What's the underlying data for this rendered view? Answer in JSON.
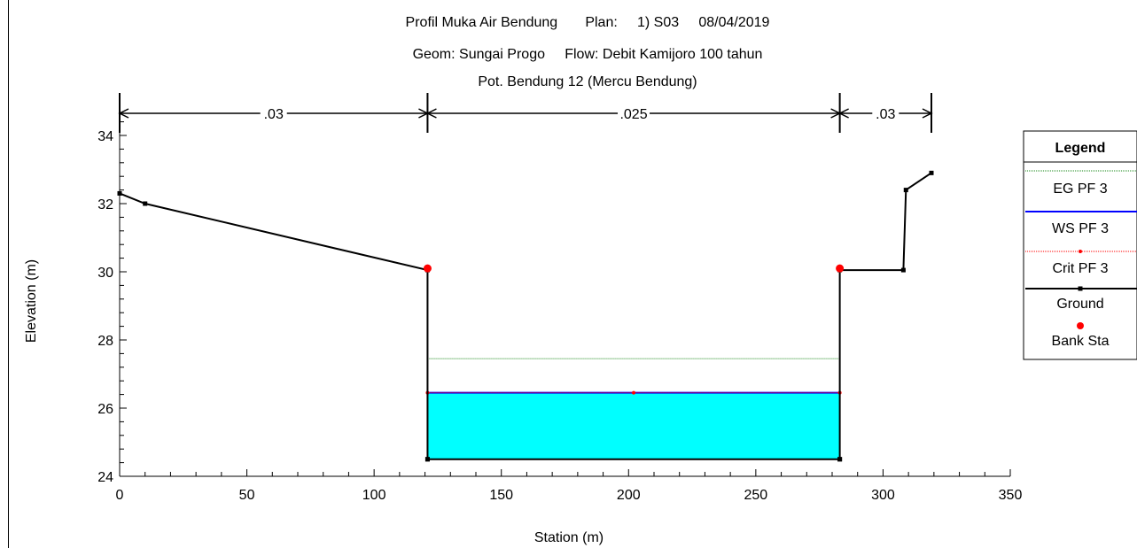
{
  "chart_data": {
    "type": "line",
    "title_lines": [
      "Profil Muka Air Bendung       Plan:     1) S03     08/04/2019",
      "Geom: Sungai Progo     Flow: Debit Kamijoro 100 tahun",
      "Pot. Bendung 12 (Mercu Bendung)"
    ],
    "xlabel": "Station (m)",
    "ylabel": "Elevation (m)",
    "xlim": [
      0,
      350
    ],
    "ylim": [
      24,
      35
    ],
    "x_ticks": [
      0,
      50,
      100,
      150,
      200,
      250,
      300,
      350
    ],
    "y_ticks": [
      24,
      26,
      28,
      30,
      32,
      34
    ],
    "x_minor_step": 10,
    "y_minor_step": 0.4,
    "grid": false,
    "legend_position": "right",
    "legend_title": "Legend",
    "manning_n": [
      {
        "label": ".03",
        "from": 0,
        "to": 121
      },
      {
        "label": ".025",
        "from": 121,
        "to": 283
      },
      {
        "label": ".03",
        "from": 283,
        "to": 319
      }
    ],
    "series": [
      {
        "name": "EG PF 3",
        "color": "#1a8a1a",
        "style": "dotted",
        "x": [
          121,
          283
        ],
        "y": [
          27.45,
          27.45
        ]
      },
      {
        "name": "WS PF 3",
        "color": "#0000ff",
        "style": "solid",
        "fill": "#00ffff",
        "x": [
          121,
          283
        ],
        "y": [
          26.45,
          26.45
        ]
      },
      {
        "name": "Crit PF 3",
        "color": "#ff0000",
        "style": "dotted-marker",
        "x": [
          121,
          202,
          283
        ],
        "y": [
          26.45,
          26.45,
          26.45
        ]
      },
      {
        "name": "Ground",
        "color": "#000000",
        "style": "solid-square",
        "x": [
          0,
          10,
          121,
          121,
          121,
          283,
          283,
          283,
          308,
          309,
          319
        ],
        "y": [
          32.3,
          32.0,
          30.05,
          24.5,
          24.5,
          24.5,
          24.5,
          30.05,
          30.05,
          32.4,
          32.9
        ]
      },
      {
        "name": "Bank Sta",
        "color": "#ff0000",
        "style": "dot",
        "x": [
          121,
          283
        ],
        "y": [
          30.1,
          30.1
        ]
      }
    ]
  }
}
